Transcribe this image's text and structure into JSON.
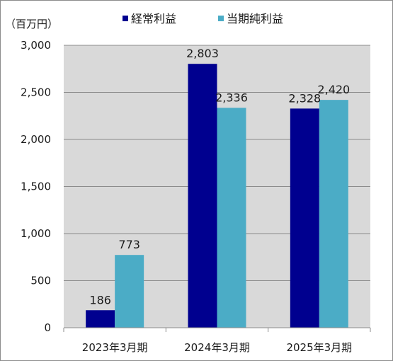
{
  "chart_data": {
    "type": "bar",
    "unit_label": "（百万円）",
    "categories": [
      "2023年3月期",
      "2024年3月期",
      "2025年3月期"
    ],
    "series": [
      {
        "name": "経常利益",
        "color": "#00008f",
        "values": [
          186,
          2803,
          2328
        ],
        "labels": [
          "186",
          "2,803",
          "2,328"
        ]
      },
      {
        "name": "当期純利益",
        "color": "#4bacc6",
        "values": [
          773,
          2336,
          2420
        ],
        "labels": [
          "773",
          "2,336",
          "2,420"
        ]
      }
    ],
    "ylim": [
      0,
      3000
    ],
    "yticks": [
      0,
      500,
      1000,
      1500,
      2000,
      2500,
      3000
    ],
    "ytick_labels": [
      "0",
      "500",
      "1,000",
      "1,500",
      "2,000",
      "2,500",
      "3,000"
    ],
    "grid": true,
    "plot_background": "#d9d9d9",
    "gridline_color": "#8c8c8c",
    "legend_position": "top"
  }
}
